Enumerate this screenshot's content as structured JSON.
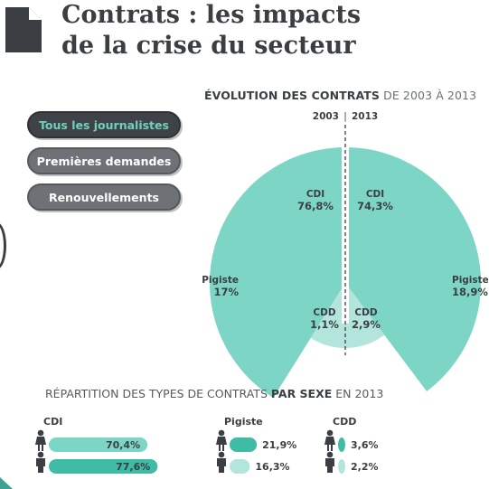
{
  "header": {
    "title_line1": "Contrats : les impacts",
    "title_line2": "de la crise du secteur",
    "icon": "document-icon"
  },
  "filters": {
    "options": [
      "Tous les journalistes",
      "Premières demandes",
      "Renouvellements"
    ],
    "selected": "Tous les journalistes"
  },
  "colors": {
    "cdi": "#7dd6c5",
    "pigiste": "#b3e5dc",
    "cdd": "#3fbca5",
    "dark": "#3b3f44",
    "active_text": "#6fd1bd"
  },
  "chart_data": [
    {
      "type": "pie",
      "title_bold": "ÉVOLUTION DES CONTRATS",
      "title_rest": "DE 2003 À 2013",
      "years": [
        "2003",
        "2013"
      ],
      "series": [
        {
          "name": "2003",
          "slices": [
            {
              "label": "CDI",
              "value_text": "76,8%",
              "value": 76.8
            },
            {
              "label": "Pigiste",
              "value_text": "17%",
              "value": 17
            },
            {
              "label": "CDD",
              "value_text": "1,1%",
              "value": 1.1
            }
          ]
        },
        {
          "name": "2013",
          "slices": [
            {
              "label": "CDI",
              "value_text": "74,3%",
              "value": 74.3
            },
            {
              "label": "Pigiste",
              "value_text": "18,9%",
              "value": 18.9
            },
            {
              "label": "CDD",
              "value_text": "2,9%",
              "value": 2.9
            }
          ]
        }
      ]
    },
    {
      "type": "bar",
      "title_rest_before": "RÉPARTITION DES TYPES DE CONTRATS",
      "title_bold": "PAR SEXE",
      "title_rest_after": "EN 2013",
      "groups": [
        {
          "name": "CDI",
          "values": [
            70.4,
            77.6
          ],
          "labels": [
            "70,4%",
            "77,6%"
          ]
        },
        {
          "name": "Pigiste",
          "values": [
            21.9,
            16.3
          ],
          "labels": [
            "21,9%",
            "16,3%"
          ]
        },
        {
          "name": "CDD",
          "values": [
            3.6,
            2.2
          ],
          "labels": [
            "3,6%",
            "2,2%"
          ]
        }
      ],
      "rows": [
        "female-icon",
        "male-icon"
      ]
    }
  ]
}
